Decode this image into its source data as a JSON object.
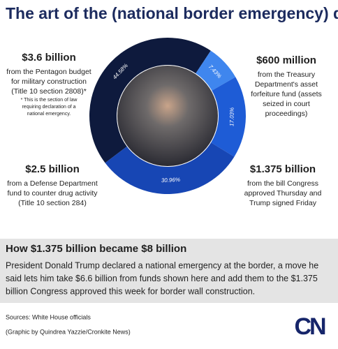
{
  "title": "The art of the (national border emergency) deal",
  "chart_data": {
    "type": "pie",
    "donut": true,
    "values": [
      44.58,
      7.43,
      17.03,
      30.96
    ],
    "value_labels": [
      "44.58%",
      "7.43%",
      "17.03%",
      "30.96%"
    ],
    "colors": [
      "#0e1a3d",
      "#3f86ee",
      "#1e5cd6",
      "#1746b4"
    ]
  },
  "callouts": [
    {
      "amount": "$3.6 billion",
      "lines": [
        "from the Pentagon budget",
        "for military construction",
        "(Title 10 section 2808)*"
      ],
      "note": [
        "* This is the section of law",
        "requiring declaration of a",
        "national emergency."
      ]
    },
    {
      "amount": "$600 million",
      "lines": [
        "from the Treasury",
        "Department's asset",
        "forfeiture fund (assets",
        "seized in court",
        "proceedings)"
      ]
    },
    {
      "amount": "$1.375 billion",
      "lines": [
        "from the bill Congress",
        "approved Thursday and",
        "Trump signed Friday"
      ]
    },
    {
      "amount": "$2.5 billion",
      "lines": [
        "from a Defense Department",
        "fund to counter drug activity",
        "(Title 10 section 284)"
      ]
    }
  ],
  "explainer": {
    "heading": "How $1.375 billion became $8 billion",
    "lines": [
      "President Donald Trump declared a national emergency at the border, a move he",
      "said lets him take $6.6 billion from funds shown here and add them to the $1.375",
      "billion Congress approved this week for border wall construction."
    ]
  },
  "footer": {
    "sources": "Sources: White House officials",
    "credit": "(Graphic by Quindrea Yazzie/Cronkite News)",
    "logo": "CN"
  }
}
